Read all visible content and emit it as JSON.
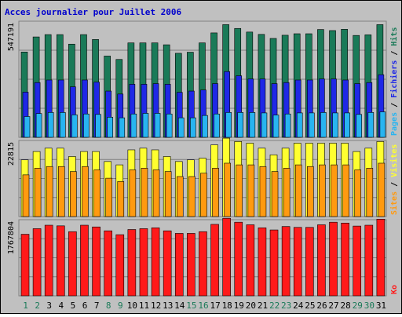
{
  "chart_data": {
    "type": "bar",
    "title": "Acces journalier pour Juillet 2006",
    "categories": [
      "1",
      "2",
      "3",
      "4",
      "5",
      "6",
      "7",
      "8",
      "9",
      "10",
      "11",
      "12",
      "13",
      "14",
      "15",
      "16",
      "17",
      "18",
      "19",
      "20",
      "21",
      "22",
      "23",
      "24",
      "25",
      "26",
      "27",
      "28",
      "29",
      "30",
      "31"
    ],
    "weekend_days": [
      "1",
      "2",
      "8",
      "9",
      "15",
      "16",
      "22",
      "23",
      "29",
      "30"
    ],
    "colors": {
      "title": "#0000cc",
      "background": "#c0c0c0",
      "hits": "#1a7a58",
      "fichiers": "#1f28e6",
      "pages": "#28b4f0",
      "visites": "#ffff30",
      "sites": "#ff9a10",
      "ko": "#ff1a1a",
      "weekday_label": "#000000",
      "weekend_label": "#1a7a58"
    },
    "panels": [
      {
        "id": "top",
        "ymax_label": "547191",
        "ymax": 547191,
        "legend": [
          {
            "label": "Pages",
            "color": "#28b4f0"
          },
          {
            "label": " / ",
            "color": "#000000"
          },
          {
            "label": "Fichiers",
            "color": "#1f28e6"
          },
          {
            "label": " / ",
            "color": "#000000"
          },
          {
            "label": "Hits",
            "color": "#1a7a58"
          }
        ],
        "series": [
          {
            "name": "Hits",
            "values": [
              402000,
              473000,
              484000,
              484000,
              439000,
              484000,
              461000,
              383000,
              367000,
              445000,
              445000,
              445000,
              436000,
              396000,
              401000,
              445000,
              492000,
              531000,
              513000,
              496000,
              485000,
              466000,
              481000,
              488000,
              488000,
              508000,
              503000,
              509000,
              480000,
              483000,
              531000
            ]
          },
          {
            "name": "Fichiers",
            "values": [
              213000,
              258000,
              270000,
              270000,
              238000,
              270000,
              260000,
              218000,
              204000,
              250000,
              250000,
              253000,
              250000,
              212000,
              218000,
              223000,
              253000,
              310000,
              290000,
              275000,
              275000,
              253000,
              258000,
              270000,
              270000,
              275000,
              275000,
              270000,
              253000,
              258000,
              295000
            ]
          },
          {
            "name": "Pages",
            "values": [
              98000,
              112000,
              117000,
              117000,
              106000,
              110000,
              108000,
              95000,
              92000,
              110000,
              113000,
              113000,
              110000,
              92000,
              92000,
              103000,
              110000,
              117000,
              117000,
              117000,
              115000,
              105000,
              110000,
              115000,
              115000,
              117000,
              115000,
              115000,
              108000,
              117000,
              120000
            ]
          }
        ]
      },
      {
        "id": "middle",
        "ymax_label": "22815",
        "ymax": 22815,
        "legend": [
          {
            "label": "Sites",
            "color": "#ff9a10"
          },
          {
            "label": " / ",
            "color": "#000000"
          },
          {
            "label": "Visites",
            "color": "#ffff30"
          }
        ],
        "series": [
          {
            "name": "Visites",
            "values": [
              17000,
              19500,
              20500,
              20500,
              18000,
              19500,
              19500,
              16500,
              15500,
              20000,
              20500,
              20000,
              18000,
              16500,
              17000,
              17500,
              21500,
              23500,
              22500,
              22000,
              20500,
              18500,
              20500,
              22000,
              22000,
              22000,
              22000,
              22000,
              19500,
              20500,
              22500
            ]
          },
          {
            "name": "Sites",
            "values": [
              12500,
              14500,
              15000,
              15000,
              13500,
              15000,
              14000,
              11500,
              10500,
              14000,
              14500,
              14000,
              13500,
              12000,
              12000,
              13000,
              14500,
              16000,
              15500,
              15500,
              15000,
              13500,
              14500,
              15500,
              15000,
              15500,
              15500,
              15500,
              14000,
              14500,
              16000
            ]
          }
        ]
      },
      {
        "id": "bottom",
        "ymax_label": "1767804",
        "ymax": 1767804,
        "legend": [
          {
            "label": "Ko",
            "color": "#ff1a1a"
          }
        ],
        "series": [
          {
            "name": "Ko",
            "values": [
              1430000,
              1560000,
              1640000,
              1625000,
              1490000,
              1640000,
              1600000,
              1510000,
              1420000,
              1540000,
              1560000,
              1580000,
              1510000,
              1450000,
              1450000,
              1490000,
              1660000,
              1800000,
              1710000,
              1650000,
              1580000,
              1530000,
              1610000,
              1590000,
              1590000,
              1650000,
              1710000,
              1690000,
              1620000,
              1640000,
              1780000
            ]
          }
        ]
      }
    ]
  }
}
